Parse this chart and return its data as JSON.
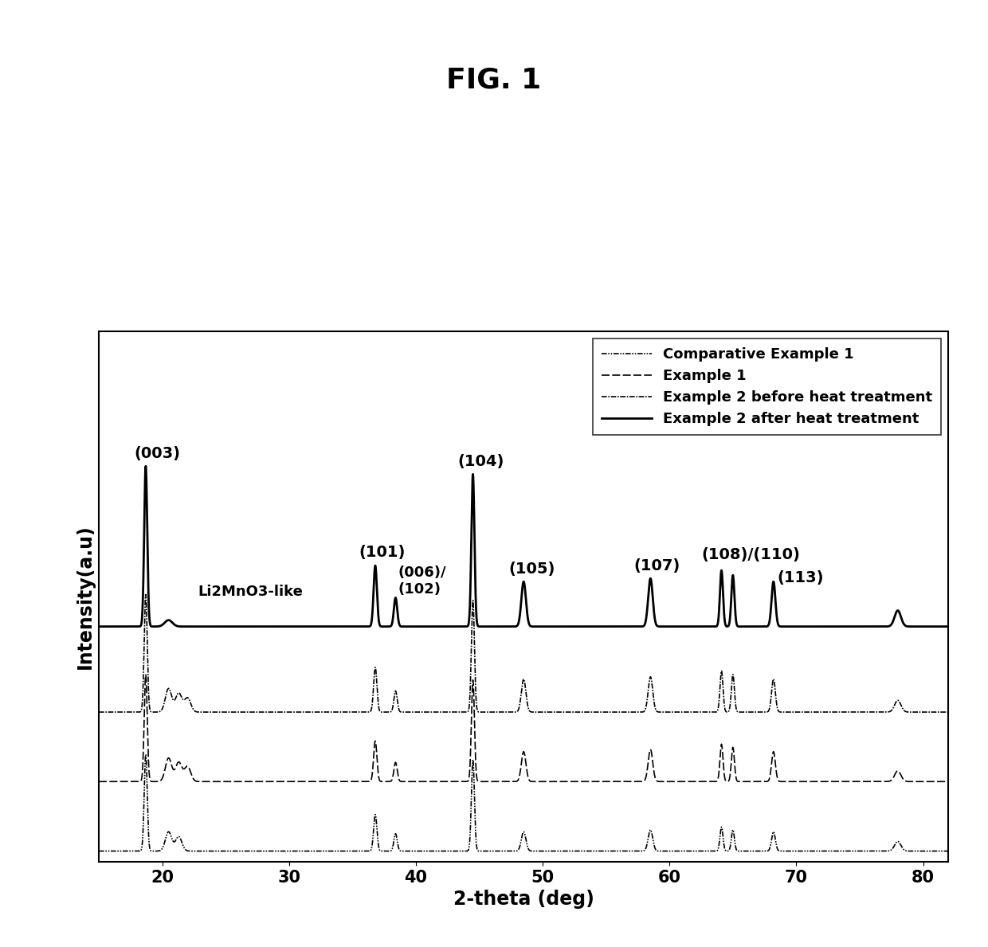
{
  "title": "FIG. 1",
  "xlabel": "2-theta (deg)",
  "ylabel": "Intensity(a.u)",
  "xmin": 15,
  "xmax": 82,
  "xticks": [
    20,
    30,
    40,
    50,
    60,
    70,
    80
  ],
  "background_color": "#ffffff",
  "legend_labels": [
    "Comparative Example 1",
    "Example 1",
    "Example 2 before heat treatment",
    "Example 2 after heat treatment"
  ],
  "title_fontsize": 26,
  "label_fontsize": 17,
  "tick_fontsize": 15,
  "legend_fontsize": 13,
  "annotation_fontsize": 14,
  "curve_offsets": [
    0.0,
    0.13,
    0.26,
    0.42
  ],
  "scale_factors": [
    0.18,
    0.2,
    0.22,
    0.3
  ]
}
